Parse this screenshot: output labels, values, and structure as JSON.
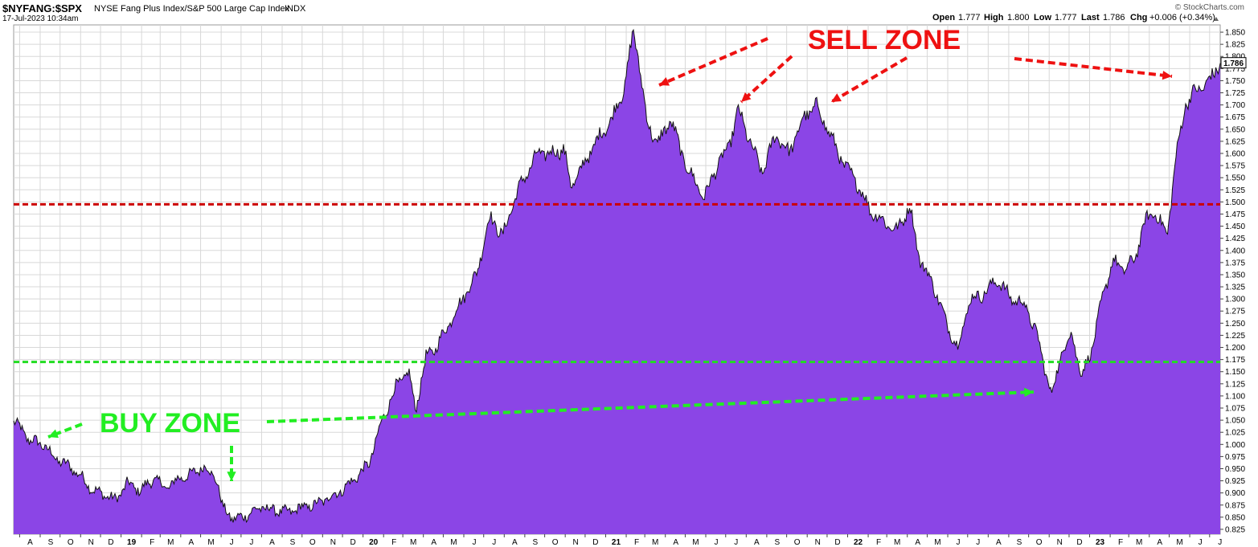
{
  "header": {
    "symbol": "$NYFANG:$SPX",
    "name": "NYSE Fang Plus Index/S&P 500 Large Cap Index",
    "exchange": "INDX",
    "timestamp": "17-Jul-2023 10:34am",
    "watermark": "© StockCharts.com",
    "quote": {
      "open_label": "Open",
      "open": "1.777",
      "high_label": "High",
      "high": "1.800",
      "low_label": "Low",
      "low": "1.777",
      "last_label": "Last",
      "last": "1.786",
      "chg_label": "Chg",
      "chg": "+0.006 (+0.34%)"
    },
    "last_price_tag": "1.786"
  },
  "colors": {
    "area_fill": "#8b45e6",
    "line": "#111111",
    "sell_line": "#cc0000",
    "buy_line": "#22dd22",
    "sell_text": "#ee1111",
    "buy_text": "#22ee22",
    "grid": "#d8d8d8"
  },
  "annotations": {
    "sell_zone_label": "SELL ZONE",
    "buy_zone_label": "BUY ZONE"
  },
  "chart_data": {
    "type": "area",
    "title": "",
    "xlabel": "",
    "ylabel": "",
    "ylim": [
      0.815,
      1.865
    ],
    "y_ticks": [
      "0.825",
      "0.850",
      "0.875",
      "0.900",
      "0.925",
      "0.950",
      "0.975",
      "1.000",
      "1.025",
      "1.050",
      "1.075",
      "1.100",
      "1.125",
      "1.150",
      "1.175",
      "1.200",
      "1.225",
      "1.250",
      "1.275",
      "1.300",
      "1.325",
      "1.350",
      "1.375",
      "1.400",
      "1.425",
      "1.450",
      "1.475",
      "1.500",
      "1.525",
      "1.550",
      "1.575",
      "1.600",
      "1.625",
      "1.650",
      "1.675",
      "1.700",
      "1.725",
      "1.750",
      "1.775",
      "1.800",
      "1.825",
      "1.850"
    ],
    "x_ticks": [
      "A",
      "S",
      "O",
      "N",
      "D",
      "19",
      "F",
      "M",
      "A",
      "M",
      "J",
      "J",
      "A",
      "S",
      "O",
      "N",
      "D",
      "20",
      "F",
      "M",
      "A",
      "M",
      "J",
      "J",
      "A",
      "S",
      "O",
      "N",
      "D",
      "21",
      "F",
      "M",
      "A",
      "M",
      "J",
      "J",
      "A",
      "S",
      "O",
      "N",
      "D",
      "22",
      "F",
      "M",
      "A",
      "M",
      "J",
      "J",
      "A",
      "S",
      "O",
      "N",
      "D",
      "23",
      "F",
      "M",
      "A",
      "M",
      "J",
      "J"
    ],
    "grid": true,
    "horizontal_lines": [
      {
        "label": "sell",
        "y": 1.495
      },
      {
        "label": "buy",
        "y": 1.17
      }
    ],
    "series": [
      {
        "x": [
          "2018-07-23",
          "2018-08-15",
          "2018-09-05",
          "2018-09-25",
          "2018-10-15",
          "2018-11-01",
          "2018-11-20",
          "2018-12-10",
          "2018-12-24",
          "2019-01-10",
          "2019-01-30",
          "2019-02-20",
          "2019-03-10",
          "2019-03-30",
          "2019-04-20",
          "2019-05-05",
          "2019-05-25",
          "2019-06-03",
          "2019-06-20",
          "2019-07-10",
          "2019-07-30",
          "2019-08-20",
          "2019-09-10",
          "2019-09-30",
          "2019-10-20",
          "2019-11-10",
          "2019-11-30",
          "2019-12-20",
          "2020-01-10",
          "2020-01-30",
          "2020-02-20",
          "2020-03-10",
          "2020-03-20",
          "2020-04-05",
          "2020-04-20",
          "2020-05-10",
          "2020-05-30",
          "2020-06-20",
          "2020-07-10",
          "2020-07-30",
          "2020-08-20",
          "2020-09-05",
          "2020-09-20",
          "2020-10-10",
          "2020-10-30",
          "2020-11-10",
          "2020-11-30",
          "2020-12-20",
          "2021-01-10",
          "2021-01-30",
          "2021-02-12",
          "2021-02-20",
          "2021-03-05",
          "2021-03-20",
          "2021-04-10",
          "2021-04-25",
          "2021-05-12",
          "2021-05-30",
          "2021-06-20",
          "2021-07-05",
          "2021-07-20",
          "2021-08-05",
          "2021-08-25",
          "2021-09-15",
          "2021-10-05",
          "2021-10-25",
          "2021-11-15",
          "2021-12-05",
          "2021-12-25",
          "2022-01-15",
          "2022-02-05",
          "2022-02-25",
          "2022-03-15",
          "2022-04-05",
          "2022-04-20",
          "2022-05-10",
          "2022-05-30",
          "2022-06-16",
          "2022-07-05",
          "2022-07-25",
          "2022-08-15",
          "2022-09-05",
          "2022-09-25",
          "2022-10-15",
          "2022-11-04",
          "2022-11-20",
          "2022-12-05",
          "2022-12-20",
          "2023-01-05",
          "2023-01-20",
          "2023-02-05",
          "2023-02-20",
          "2023-03-10",
          "2023-03-25",
          "2023-04-10",
          "2023-04-28",
          "2023-05-10",
          "2023-05-25",
          "2023-06-10",
          "2023-06-25",
          "2023-07-17"
        ],
        "values": [
          1.05,
          1.01,
          1.0,
          0.97,
          0.955,
          0.935,
          0.905,
          0.895,
          0.885,
          0.92,
          0.905,
          0.93,
          0.91,
          0.93,
          0.94,
          0.955,
          0.93,
          0.87,
          0.845,
          0.855,
          0.87,
          0.865,
          0.86,
          0.87,
          0.875,
          0.89,
          0.905,
          0.93,
          0.96,
          1.05,
          1.12,
          1.15,
          1.07,
          1.18,
          1.2,
          1.25,
          1.3,
          1.35,
          1.47,
          1.43,
          1.52,
          1.56,
          1.6,
          1.6,
          1.61,
          1.53,
          1.58,
          1.63,
          1.67,
          1.74,
          1.855,
          1.79,
          1.66,
          1.62,
          1.67,
          1.6,
          1.55,
          1.51,
          1.58,
          1.61,
          1.69,
          1.63,
          1.56,
          1.64,
          1.6,
          1.67,
          1.7,
          1.64,
          1.58,
          1.54,
          1.48,
          1.46,
          1.44,
          1.49,
          1.38,
          1.33,
          1.25,
          1.2,
          1.3,
          1.31,
          1.34,
          1.3,
          1.29,
          1.22,
          1.1,
          1.19,
          1.23,
          1.14,
          1.2,
          1.3,
          1.38,
          1.36,
          1.38,
          1.46,
          1.48,
          1.43,
          1.58,
          1.7,
          1.73,
          1.74,
          1.786
        ]
      }
    ]
  }
}
